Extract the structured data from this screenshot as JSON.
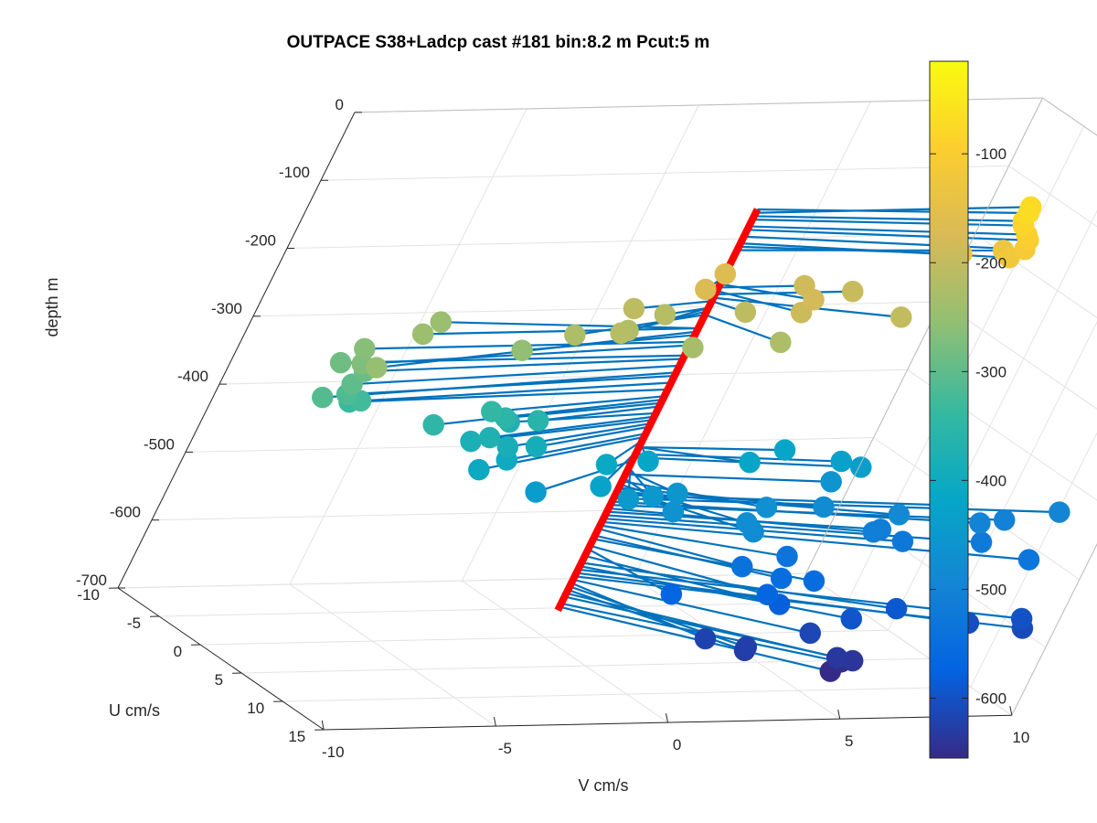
{
  "chart_data": {
    "type": "scatter",
    "title": "OUTPACE S38+Ladcp cast #181 bin:8.2 m  Pcut:5 m",
    "xlabel": "V cm/s",
    "ylabel": "U cm/s",
    "zlabel": "depth m",
    "xlim": [
      -10,
      10
    ],
    "ylim": [
      -10,
      15
    ],
    "zlim": [
      -700,
      0
    ],
    "x_ticks": [
      "-10",
      "-5",
      "0",
      "5",
      "10"
    ],
    "y_ticks": [
      "-10",
      "-5",
      "0",
      "5",
      "10",
      "15"
    ],
    "z_ticks": [
      "0",
      "-100",
      "-200",
      "-300",
      "-400",
      "-500",
      "-600",
      "-700"
    ],
    "grid": true,
    "view": "3d",
    "colorbar": {
      "colormap": "parula",
      "range": [
        -655,
        -15
      ],
      "ticks": [
        "-100",
        "-200",
        "-300",
        "-400",
        "-500",
        "-600"
      ],
      "tick_values": [
        -100,
        -200,
        -300,
        -400,
        -500,
        -600
      ]
    },
    "profile_line": {
      "color": "#ff0000",
      "depth_range": [
        -660,
        -70
      ]
    },
    "vector_color": "#0072bd",
    "points": [
      {
        "depth": -70,
        "u": 1.6,
        "v": 7.5
      },
      {
        "depth": -75,
        "u": 0.0,
        "v": 8.0
      },
      {
        "depth": -80,
        "u": 1.8,
        "v": 7.4
      },
      {
        "depth": -85,
        "u": 2.0,
        "v": 7.4
      },
      {
        "depth": -95,
        "u": 2.4,
        "v": 7.5
      },
      {
        "depth": -100,
        "u": 2.8,
        "v": 7.5
      },
      {
        "depth": -110,
        "u": 3.2,
        "v": 7.4
      },
      {
        "depth": -120,
        "u": 3.4,
        "v": 7.0
      },
      {
        "depth": -125,
        "u": 2.0,
        "v": 6.0
      },
      {
        "depth": -130,
        "u": 1.0,
        "v": 7.5
      },
      {
        "depth": -165,
        "u": 0.0,
        "v": 0.0
      },
      {
        "depth": -170,
        "u": 2.0,
        "v": -1.0
      },
      {
        "depth": -180,
        "u": 3.0,
        "v": 2.0
      },
      {
        "depth": -185,
        "u": 0.0,
        "v": 2.5
      },
      {
        "depth": -190,
        "u": 4.0,
        "v": 1.5
      },
      {
        "depth": -195,
        "u": 0.0,
        "v": 4.0
      },
      {
        "depth": -200,
        "u": 4.0,
        "v": 4.5
      },
      {
        "depth": -205,
        "u": 2.0,
        "v": 0.5
      },
      {
        "depth": -205,
        "u": 1.0,
        "v": -2.5
      },
      {
        "depth": -215,
        "u": 4.0,
        "v": -3.5
      },
      {
        "depth": -215,
        "u": 1.0,
        "v": -1.5
      },
      {
        "depth": -220,
        "u": 3.0,
        "v": -3.0
      },
      {
        "depth": -225,
        "u": 5.0,
        "v": 1.0
      },
      {
        "depth": -225,
        "u": 3.0,
        "v": -4.5
      },
      {
        "depth": -230,
        "u": 5.0,
        "v": -1.5
      },
      {
        "depth": -245,
        "u": 0.0,
        "v": -8.0
      },
      {
        "depth": -245,
        "u": -2.0,
        "v": -7.0
      },
      {
        "depth": -250,
        "u": 5.0,
        "v": -10.5
      },
      {
        "depth": -255,
        "u": 2.0,
        "v": -5.5
      },
      {
        "depth": -265,
        "u": 0.0,
        "v": -9.5
      },
      {
        "depth": -270,
        "u": 2.0,
        "v": -10.0
      },
      {
        "depth": -285,
        "u": 0.0,
        "v": -10.0
      },
      {
        "depth": -290,
        "u": 1.0,
        "v": -9.5
      },
      {
        "depth": -300,
        "u": 2.0,
        "v": -10.0
      },
      {
        "depth": -310,
        "u": 3.0,
        "v": -11.0
      },
      {
        "depth": -315,
        "u": 2.0,
        "v": -10.0
      },
      {
        "depth": -325,
        "u": 2.0,
        "v": -9.5
      },
      {
        "depth": -335,
        "u": 1.0,
        "v": -9.5
      },
      {
        "depth": -345,
        "u": 2.0,
        "v": -5.5
      },
      {
        "depth": -350,
        "u": 3.5,
        "v": -7.5
      },
      {
        "depth": -355,
        "u": 2.0,
        "v": -5.0
      },
      {
        "depth": -360,
        "u": 2.0,
        "v": -4.0
      },
      {
        "depth": -370,
        "u": 1.0,
        "v": -4.5
      },
      {
        "depth": -375,
        "u": 3.0,
        "v": -5.5
      },
      {
        "depth": -380,
        "u": 3.0,
        "v": -6.0
      },
      {
        "depth": -385,
        "u": 3.5,
        "v": -5.0
      },
      {
        "depth": -390,
        "u": 3.0,
        "v": -4.0
      },
      {
        "depth": -400,
        "u": 4.0,
        "v": -5.0
      },
      {
        "depth": -405,
        "u": 5.0,
        "v": -6.0
      },
      {
        "depth": -410,
        "u": 4.0,
        "v": -2.0
      },
      {
        "depth": -415,
        "u": 3.0,
        "v": -0.5
      },
      {
        "depth": -420,
        "u": 1.0,
        "v": 4.0
      },
      {
        "depth": -420,
        "u": 3.0,
        "v": 2.5
      },
      {
        "depth": -425,
        "u": 6.0,
        "v": -2.5
      },
      {
        "depth": -430,
        "u": 2.0,
        "v": 5.5
      },
      {
        "depth": -435,
        "u": 2.5,
        "v": 6.0
      },
      {
        "depth": -440,
        "u": 5.0,
        "v": -4.0
      },
      {
        "depth": -445,
        "u": 6.0,
        "v": -1.5
      },
      {
        "depth": -450,
        "u": 5.0,
        "v": -0.5
      },
      {
        "depth": -455,
        "u": 4.0,
        "v": 0.5
      },
      {
        "depth": -460,
        "u": 2.0,
        "v": 5.5
      },
      {
        "depth": -465,
        "u": 6.0,
        "v": 0.0
      },
      {
        "depth": -470,
        "u": 5.0,
        "v": 3.0
      },
      {
        "depth": -475,
        "u": 7.0,
        "v": 2.0
      },
      {
        "depth": -480,
        "u": 8.0,
        "v": 2.0
      },
      {
        "depth": -480,
        "u": 4.0,
        "v": 5.0
      },
      {
        "depth": -485,
        "u": 5.0,
        "v": 7.0
      },
      {
        "depth": -490,
        "u": 3.0,
        "v": 9.0
      },
      {
        "depth": -495,
        "u": 4.0,
        "v": 12.0
      },
      {
        "depth": -500,
        "u": 5.0,
        "v": 9.5
      },
      {
        "depth": -505,
        "u": 4.0,
        "v": 10.5
      },
      {
        "depth": -510,
        "u": 5.0,
        "v": 6.5
      },
      {
        "depth": -515,
        "u": 4.0,
        "v": 7.0
      },
      {
        "depth": -520,
        "u": 6.0,
        "v": 9.5
      },
      {
        "depth": -525,
        "u": 5.0,
        "v": 7.5
      },
      {
        "depth": -530,
        "u": 8.0,
        "v": 10.5
      },
      {
        "depth": -535,
        "u": 6.0,
        "v": 4.0
      },
      {
        "depth": -540,
        "u": 7.0,
        "v": 2.5
      },
      {
        "depth": -550,
        "u": 8.0,
        "v": 3.5
      },
      {
        "depth": -555,
        "u": 8.0,
        "v": 4.5
      },
      {
        "depth": -565,
        "u": 9.0,
        "v": 3.0
      },
      {
        "depth": -570,
        "u": 8.0,
        "v": 0.5
      },
      {
        "depth": -580,
        "u": 9.0,
        "v": 3.5
      },
      {
        "depth": -590,
        "u": 9.0,
        "v": 7.0
      },
      {
        "depth": -595,
        "u": 10.0,
        "v": 5.5
      },
      {
        "depth": -600,
        "u": 10.0,
        "v": 10.5
      },
      {
        "depth": -605,
        "u": 10.0,
        "v": 9.0
      },
      {
        "depth": -610,
        "u": 10.5,
        "v": 10.5
      },
      {
        "depth": -615,
        "u": 10.0,
        "v": 4.5
      },
      {
        "depth": -620,
        "u": 10.0,
        "v": 1.5
      },
      {
        "depth": -625,
        "u": 11.0,
        "v": 2.5
      },
      {
        "depth": -630,
        "u": 11.0,
        "v": 2.5
      },
      {
        "depth": -635,
        "u": 12.0,
        "v": 5.0
      },
      {
        "depth": -640,
        "u": 12.0,
        "v": 5.5
      },
      {
        "depth": -650,
        "u": 11.0,
        "v": 5.5
      },
      {
        "depth": -655,
        "u": 12.0,
        "v": 5.0
      }
    ]
  }
}
